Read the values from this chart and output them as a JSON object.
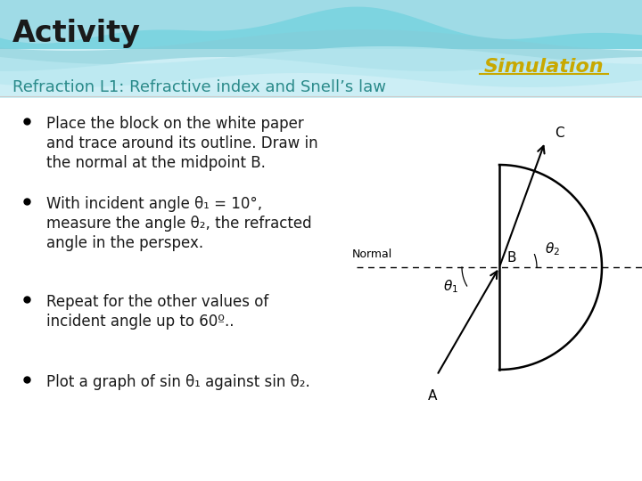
{
  "title": "Activity",
  "subtitle": "Refraction L1: Refractive index and Snell’s law",
  "simulation_text": "Simulation",
  "simulation_color": "#c8a800",
  "title_color": "#1a1a1a",
  "subtitle_color": "#2a8a8a",
  "body_bg": "#ffffff",
  "bullet_points": [
    "Place the block on the white paper\nand trace around its outline. Draw in\nthe normal at the midpoint B.",
    "With incident angle θ₁ = 10°,\nmeasure the angle θ₂, the refracted\nangle in the perspex.",
    "Repeat for the other values of\nincident angle up to 60º..",
    "Plot a graph of sin θ₁ against sin θ₂."
  ],
  "figsize": [
    7.2,
    5.4
  ],
  "dpi": 100
}
